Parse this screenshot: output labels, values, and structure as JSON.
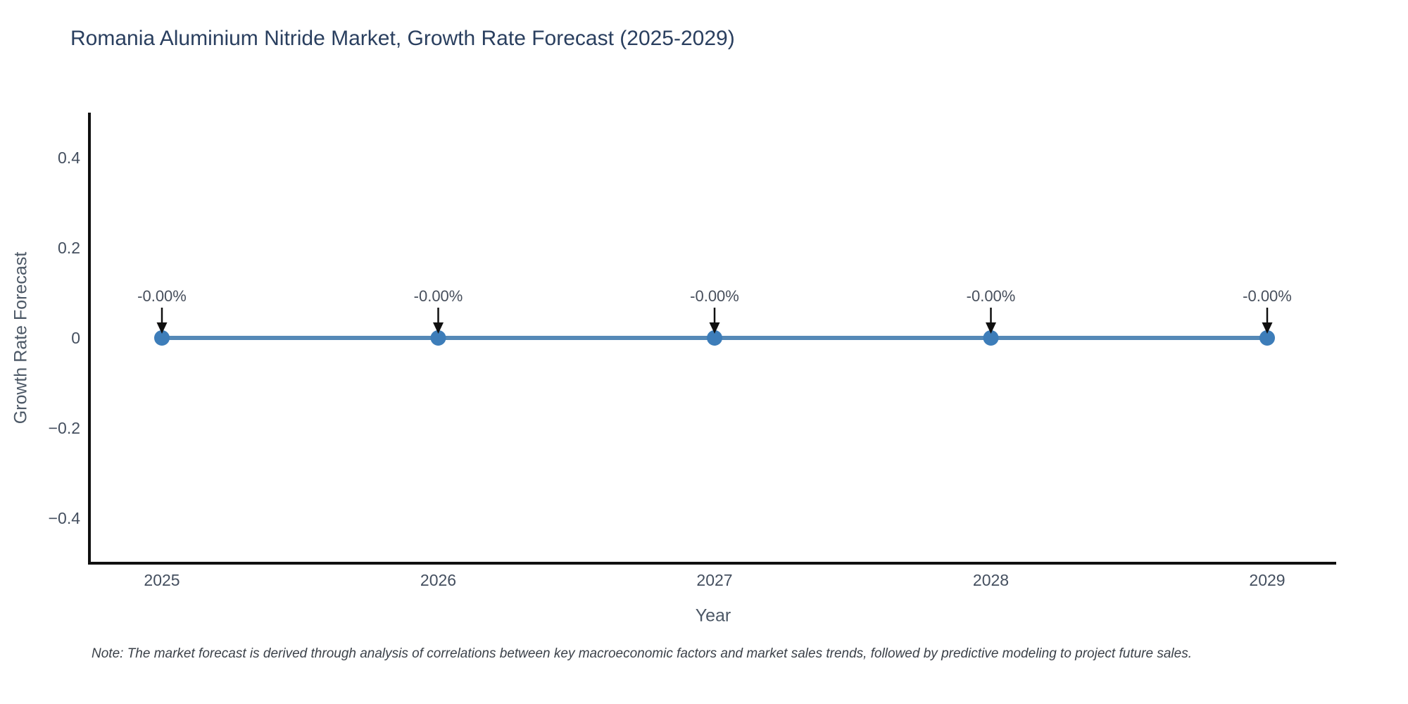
{
  "note": "Note: The market forecast is derived through analysis of correlations between key macroeconomic factors and market sales trends, followed by predictive modeling to project future sales.",
  "chart_data": {
    "type": "line",
    "title": "Romania Aluminium Nitride Market, Growth Rate Forecast (2025-2029)",
    "xlabel": "Year",
    "ylabel": "Growth Rate Forecast",
    "x": [
      2025,
      2026,
      2027,
      2028,
      2029
    ],
    "xticks": [
      "2025",
      "2026",
      "2027",
      "2028",
      "2029"
    ],
    "series": [
      {
        "name": "Growth Rate Forecast",
        "values": [
          0,
          0,
          0,
          0,
          0
        ],
        "point_labels": [
          "-0.00%",
          "-0.00%",
          "-0.00%",
          "-0.00%",
          "-0.00%"
        ]
      }
    ],
    "ylim": [
      -0.5,
      0.5
    ],
    "yticks": [
      {
        "value": 0.4,
        "label": "0.4"
      },
      {
        "value": 0.2,
        "label": "0.2"
      },
      {
        "value": 0,
        "label": "0"
      },
      {
        "value": -0.2,
        "label": "−0.2"
      },
      {
        "value": -0.4,
        "label": "−0.4"
      }
    ],
    "grid": false,
    "legend": "none",
    "colors": {
      "line": "#5589b7",
      "marker": "#3d7db9",
      "axis": "#101010",
      "tick": "#444f5f",
      "annotation": "#474f5c"
    }
  }
}
